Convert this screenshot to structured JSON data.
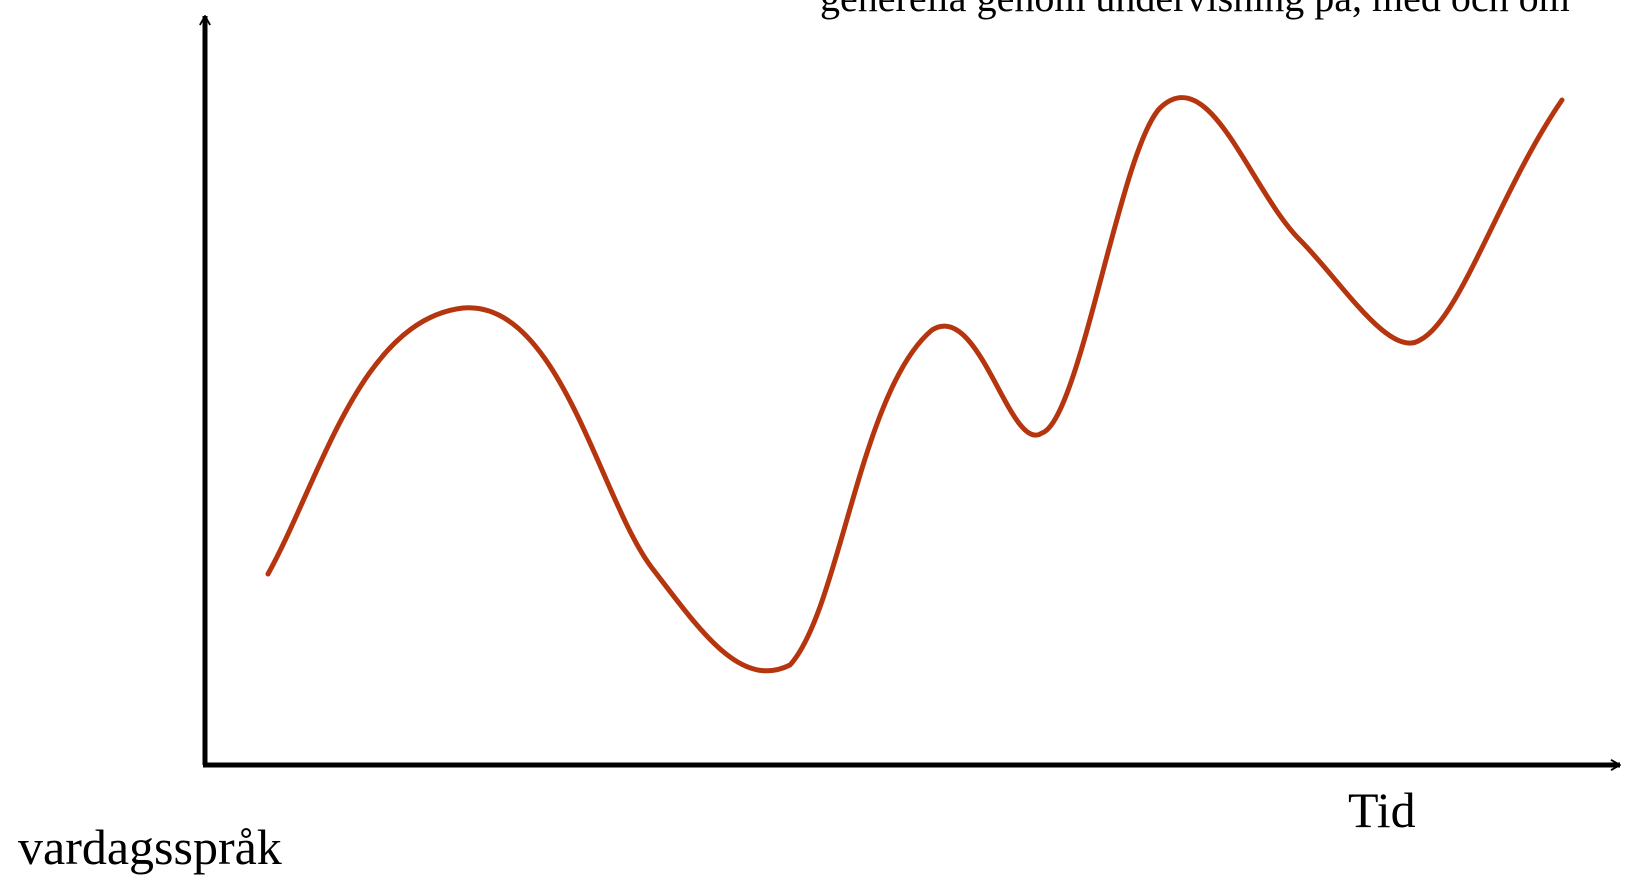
{
  "top_text": "generella genom undervisning på, med och om",
  "x_axis_label": "Tid",
  "bottom_left_label": "vardagsspråk",
  "colors": {
    "curve": "#b5360e",
    "axes": "#000000"
  },
  "chart_data": {
    "type": "line",
    "title": "",
    "xlabel": "Tid",
    "ylabel": "",
    "series": [
      {
        "x": [
          0,
          0.15,
          0.3,
          0.38,
          0.43,
          0.56,
          0.64,
          0.72,
          0.76,
          0.9,
          1.0
        ],
        "values": [
          0.3,
          0.68,
          0.28,
          0.12,
          0.09,
          0.65,
          0.49,
          0.99,
          0.75,
          0.61,
          0.98
        ]
      }
    ]
  }
}
